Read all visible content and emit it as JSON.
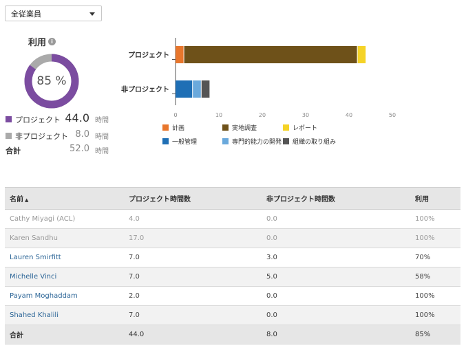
{
  "filter": {
    "selected": "全従業員"
  },
  "utilization": {
    "title": "利用",
    "percent": 85,
    "percent_label": "85 %",
    "colors": {
      "project": "#7b4ca0",
      "nonproject": "#aaaaaa"
    },
    "rows": [
      {
        "label": "プロジェクト",
        "value": "44.0",
        "unit": "時間"
      },
      {
        "label": "非プロジェクト",
        "value": "8.0",
        "unit": "時間"
      },
      {
        "label": "合計",
        "value": "52.0",
        "unit": "時間"
      }
    ]
  },
  "chart_data": {
    "type": "bar",
    "orientation": "horizontal",
    "stacked": true,
    "categories": [
      "プロジェクト",
      "非プロジェクト"
    ],
    "xlim": [
      0,
      50
    ],
    "xticks": [
      0,
      10,
      20,
      30,
      40,
      50
    ],
    "series": [
      {
        "name": "計画",
        "color": "#e8762c",
        "values": [
          2,
          0
        ]
      },
      {
        "name": "実地調査",
        "color": "#6e5119",
        "values": [
          40,
          0
        ]
      },
      {
        "name": "レポート",
        "color": "#f5d327",
        "values": [
          2,
          0
        ]
      },
      {
        "name": "一般管理",
        "color": "#1f6fb5",
        "values": [
          0,
          4
        ]
      },
      {
        "name": "専門的能力の開発",
        "color": "#6aa9dc",
        "values": [
          0,
          2
        ]
      },
      {
        "name": "組織の取り組み",
        "color": "#555555",
        "values": [
          0,
          2
        ]
      }
    ]
  },
  "table": {
    "headers": [
      "名前",
      "プロジェクト時間数",
      "非プロジェクト時間数",
      "利用"
    ],
    "sort_indicator": "▲",
    "rows": [
      [
        "Cathy Miyagi (ACL)",
        "4.0",
        "0.0",
        "100%"
      ],
      [
        "Karen Sandhu",
        "17.0",
        "0.0",
        "100%"
      ],
      [
        "Lauren Smirfitt",
        "7.0",
        "3.0",
        "70%"
      ],
      [
        "Michelle Vinci",
        "7.0",
        "5.0",
        "58%"
      ],
      [
        "Payam Moghaddam",
        "2.0",
        "0.0",
        "100%"
      ],
      [
        "Shahed Khalili",
        "7.0",
        "0.0",
        "100%"
      ]
    ],
    "total": [
      "合計",
      "44.0",
      "8.0",
      "85%"
    ]
  }
}
